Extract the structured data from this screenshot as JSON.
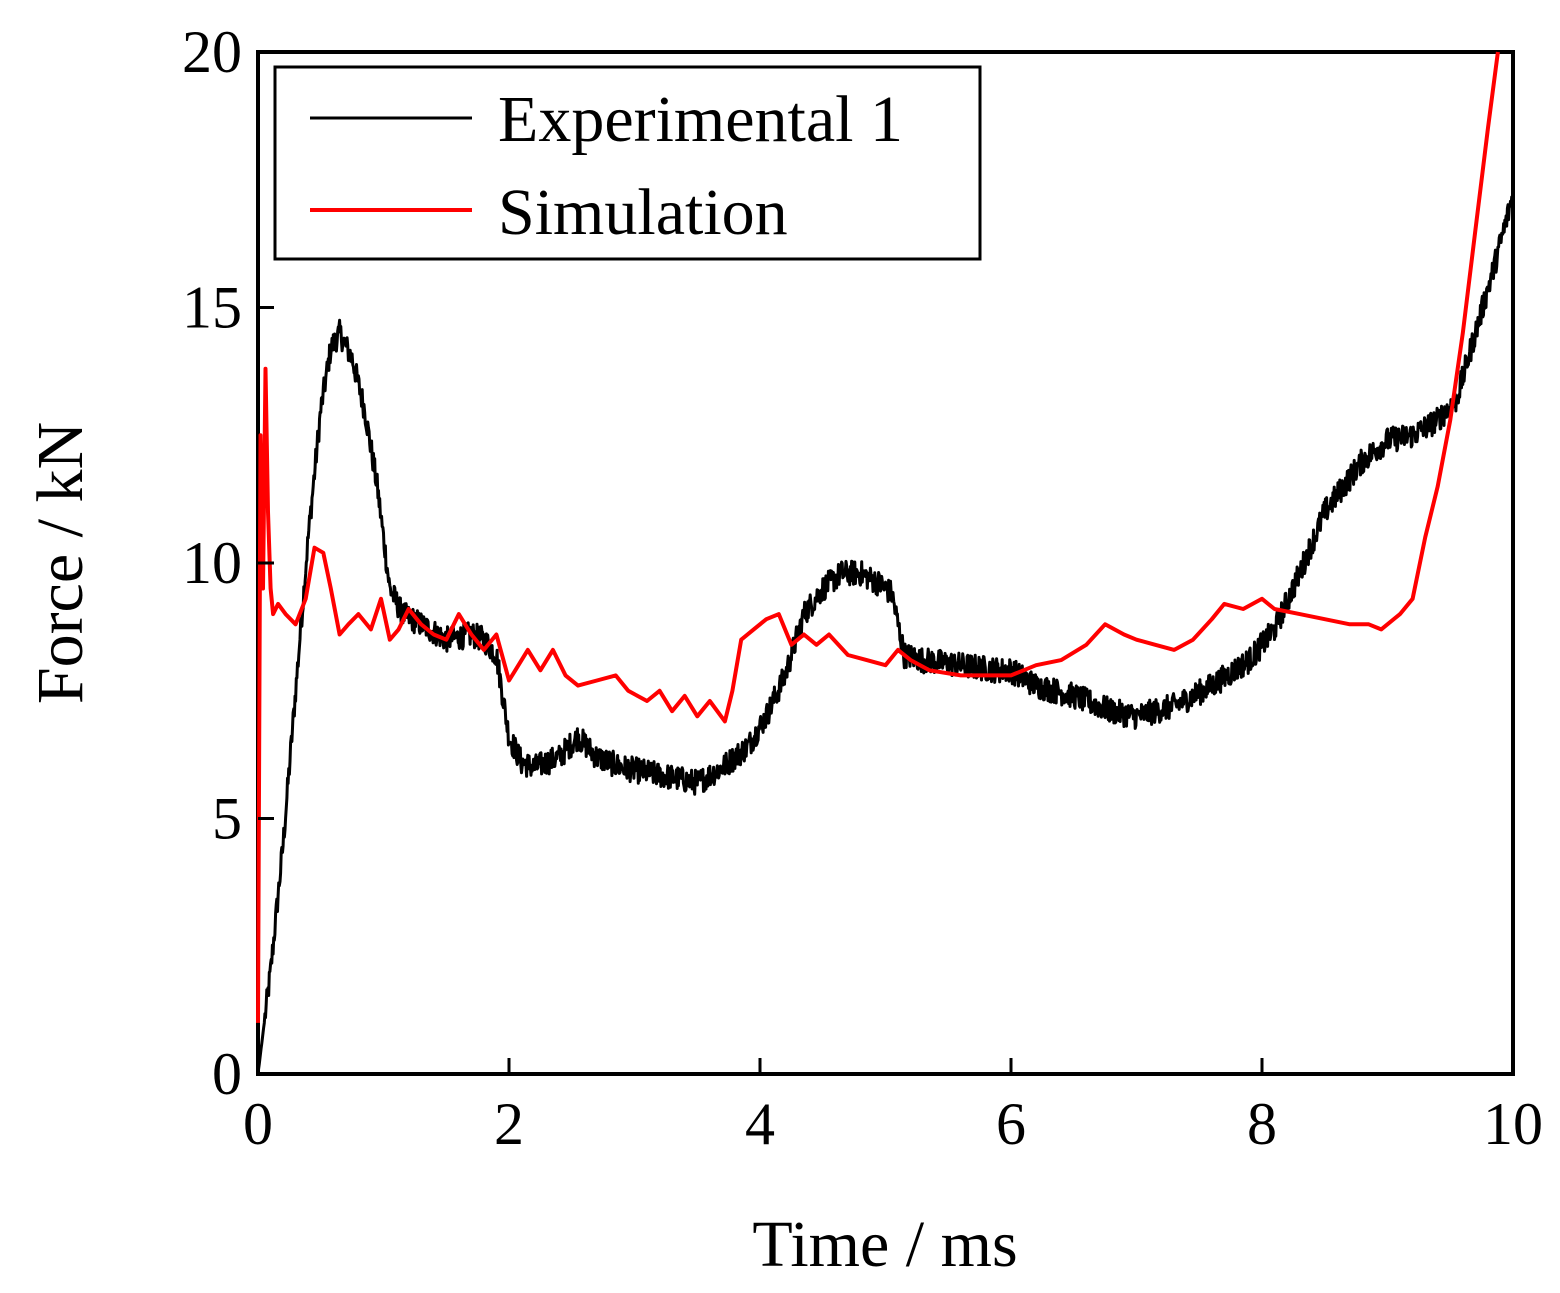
{
  "chart_data": {
    "type": "line",
    "title": "",
    "xlabel": "Time / ms",
    "ylabel": "Force / kN",
    "xlim": [
      0,
      10
    ],
    "ylim": [
      0,
      20
    ],
    "xticks": [
      0,
      2,
      4,
      6,
      8,
      10
    ],
    "yticks": [
      0,
      5,
      10,
      15,
      20
    ],
    "xtick_labels": [
      "0",
      "2",
      "4",
      "6",
      "8",
      "10"
    ],
    "ytick_labels": [
      "0",
      "5",
      "10",
      "15",
      "20"
    ],
    "grid": false,
    "legend_position": "top-left",
    "series": [
      {
        "name": "Experimental 1",
        "color": "#000000",
        "noise_amplitude": 0.25,
        "x": [
          0,
          0.1,
          0.2,
          0.3,
          0.4,
          0.5,
          0.58,
          0.65,
          0.75,
          0.85,
          0.95,
          1.05,
          1.15,
          1.3,
          1.5,
          1.7,
          1.8,
          1.9,
          2.0,
          2.1,
          2.2,
          2.4,
          2.55,
          2.7,
          2.9,
          3.1,
          3.3,
          3.5,
          3.7,
          3.9,
          4.05,
          4.2,
          4.35,
          4.5,
          4.65,
          4.8,
          4.95,
          5.05,
          5.15,
          5.3,
          5.6,
          5.9,
          6.0,
          6.2,
          6.5,
          6.8,
          7.0,
          7.3,
          7.6,
          7.9,
          8.1,
          8.3,
          8.5,
          8.8,
          9.0,
          9.2,
          9.4,
          9.55,
          9.7,
          9.85,
          10.0
        ],
        "y": [
          0.0,
          2.0,
          4.5,
          7.5,
          10.5,
          13.0,
          14.2,
          14.5,
          14.0,
          13.0,
          11.5,
          9.5,
          9.0,
          8.8,
          8.5,
          8.6,
          8.5,
          8.2,
          6.6,
          6.1,
          6.0,
          6.2,
          6.6,
          6.2,
          6.0,
          5.9,
          5.8,
          5.7,
          6.0,
          6.4,
          7.0,
          7.8,
          9.0,
          9.5,
          9.8,
          9.8,
          9.6,
          9.4,
          8.2,
          8.1,
          8.0,
          7.9,
          7.9,
          7.6,
          7.4,
          7.1,
          7.0,
          7.2,
          7.6,
          8.1,
          8.7,
          9.8,
          11.0,
          12.0,
          12.4,
          12.5,
          12.8,
          13.2,
          14.5,
          15.8,
          17.2
        ]
      },
      {
        "name": "Simulation",
        "color": "#ff0000",
        "noise_amplitude": 0.0,
        "x": [
          0,
          0.02,
          0.04,
          0.06,
          0.08,
          0.1,
          0.12,
          0.16,
          0.22,
          0.3,
          0.38,
          0.45,
          0.52,
          0.58,
          0.65,
          0.72,
          0.8,
          0.9,
          0.98,
          1.05,
          1.12,
          1.2,
          1.3,
          1.4,
          1.5,
          1.6,
          1.7,
          1.8,
          1.9,
          2.0,
          2.05,
          2.15,
          2.25,
          2.35,
          2.45,
          2.55,
          2.7,
          2.85,
          2.95,
          3.1,
          3.2,
          3.3,
          3.4,
          3.5,
          3.6,
          3.72,
          3.78,
          3.85,
          3.95,
          4.05,
          4.15,
          4.25,
          4.35,
          4.45,
          4.55,
          4.7,
          4.85,
          5.0,
          5.1,
          5.2,
          5.35,
          5.6,
          5.8,
          6.0,
          6.2,
          6.4,
          6.6,
          6.75,
          6.9,
          7.0,
          7.15,
          7.3,
          7.45,
          7.6,
          7.7,
          7.85,
          8.0,
          8.1,
          8.3,
          8.5,
          8.7,
          8.85,
          8.95,
          9.1,
          9.2,
          9.3,
          9.4,
          9.5,
          9.6,
          9.7,
          9.8,
          9.88
        ],
        "y": [
          1.0,
          12.5,
          9.5,
          13.8,
          11.0,
          9.5,
          9.0,
          9.2,
          9.0,
          8.8,
          9.3,
          10.3,
          10.2,
          9.5,
          8.6,
          8.8,
          9.0,
          8.7,
          9.3,
          8.5,
          8.7,
          9.1,
          8.8,
          8.6,
          8.5,
          9.0,
          8.6,
          8.3,
          8.6,
          7.7,
          7.9,
          8.3,
          7.9,
          8.3,
          7.8,
          7.6,
          7.7,
          7.8,
          7.5,
          7.3,
          7.5,
          7.1,
          7.4,
          7.0,
          7.3,
          6.9,
          7.5,
          8.5,
          8.7,
          8.9,
          9.0,
          8.4,
          8.6,
          8.4,
          8.6,
          8.2,
          8.1,
          8.0,
          8.3,
          8.1,
          7.9,
          7.8,
          7.8,
          7.8,
          8.0,
          8.1,
          8.4,
          8.8,
          8.6,
          8.5,
          8.4,
          8.3,
          8.5,
          8.9,
          9.2,
          9.1,
          9.3,
          9.1,
          9.0,
          8.9,
          8.8,
          8.8,
          8.7,
          9.0,
          9.3,
          10.5,
          11.5,
          12.8,
          14.5,
          16.5,
          18.5,
          20.0
        ]
      }
    ]
  }
}
